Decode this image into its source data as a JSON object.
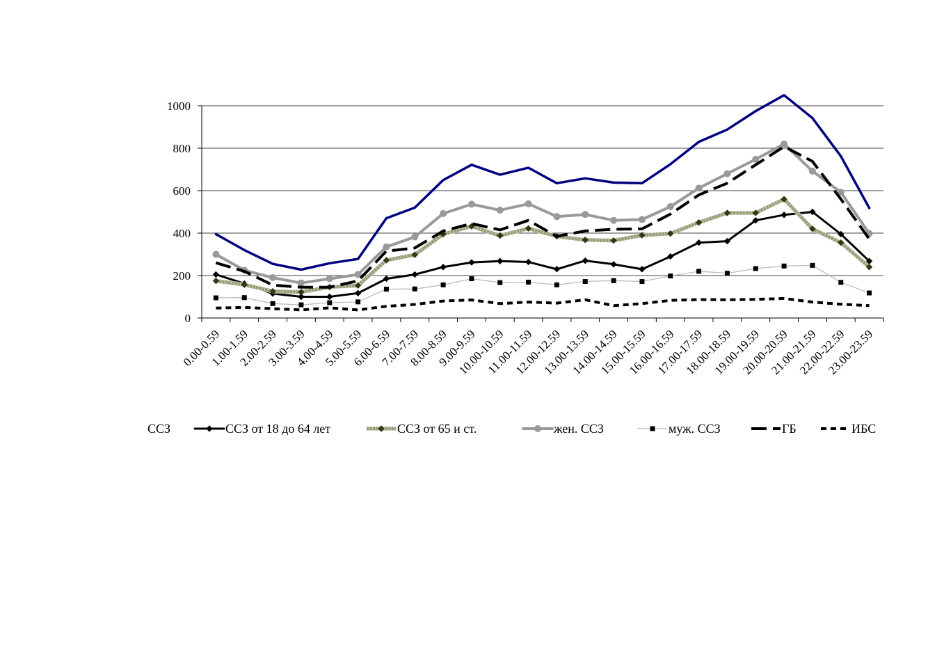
{
  "chart_data": {
    "type": "line",
    "title": "",
    "xlabel": "",
    "ylabel": "",
    "ylim": [
      0,
      1000
    ],
    "yticks": [
      0,
      200,
      400,
      600,
      800,
      1000
    ],
    "grid": true,
    "legend_position": "bottom",
    "categories": [
      "0.00-0.59",
      "1.00-1.59",
      "2.00-2.59",
      "3.00-3.59",
      "4.00-4.59",
      "5.00-5.59",
      "6.00-6.59",
      "7.00-7.59",
      "8.00-8.59",
      "9.00-9.59",
      "10.00-10.59",
      "11.00-11.59",
      "12.00-12.59",
      "13.00-13.59",
      "14.00-14.59",
      "15.00-15.59",
      "16.00-16.59",
      "17.00-17.59",
      "18.00-18.59",
      "19.00-19.59",
      "20.00-20.59",
      "21.00-21.59",
      "22.00-22.59",
      "23.00-23.59"
    ],
    "series": [
      {
        "name": "ССЗ",
        "color": "#000080",
        "style": "solid",
        "width": 3.5,
        "marker": "none",
        "values": [
          395,
          320,
          255,
          228,
          258,
          278,
          470,
          520,
          650,
          722,
          675,
          708,
          635,
          658,
          638,
          635,
          725,
          830,
          888,
          975,
          1050,
          942,
          762,
          518
        ]
      },
      {
        "name": "ССЗ от 18 до 64 лет",
        "color": "#000000",
        "style": "solid",
        "width": 3,
        "marker": "diamond",
        "values": [
          205,
          162,
          115,
          100,
          100,
          117,
          185,
          205,
          240,
          262,
          268,
          264,
          230,
          270,
          253,
          230,
          290,
          355,
          362,
          460,
          486,
          500,
          395,
          268
        ]
      },
      {
        "name": "ССЗ от 65 и ст.",
        "color": "#9c9a72",
        "style": "hatched",
        "width": 4.5,
        "marker": "diamond",
        "values": [
          175,
          157,
          126,
          122,
          146,
          153,
          272,
          298,
          395,
          432,
          388,
          422,
          385,
          368,
          365,
          390,
          398,
          450,
          495,
          495,
          560,
          420,
          355,
          240
        ]
      },
      {
        "name": "жен. ССЗ",
        "color": "#999999",
        "style": "solid",
        "width": 4,
        "marker": "circle",
        "values": [
          300,
          225,
          190,
          165,
          185,
          205,
          335,
          382,
          492,
          536,
          508,
          538,
          478,
          488,
          460,
          464,
          525,
          612,
          680,
          748,
          820,
          692,
          592,
          398
        ]
      },
      {
        "name": "муж. ССЗ",
        "color": "#bbbbbb",
        "style": "solid",
        "width": 1.3,
        "marker": "square",
        "values": [
          95,
          96,
          68,
          62,
          72,
          76,
          136,
          137,
          156,
          185,
          167,
          169,
          156,
          172,
          176,
          172,
          198,
          220,
          211,
          233,
          245,
          248,
          168,
          118
        ]
      },
      {
        "name": "ГБ",
        "color": "#000000",
        "style": "dashed",
        "width": 4,
        "marker": "none",
        "values": [
          260,
          220,
          155,
          145,
          145,
          175,
          315,
          330,
          410,
          445,
          415,
          460,
          385,
          410,
          418,
          420,
          490,
          580,
          635,
          722,
          808,
          738,
          560,
          372
        ]
      },
      {
        "name": "ИБС",
        "color": "#000000",
        "style": "dotted",
        "width": 4,
        "marker": "none",
        "values": [
          47,
          50,
          44,
          38,
          48,
          38,
          55,
          64,
          80,
          85,
          68,
          75,
          70,
          86,
          58,
          68,
          83,
          87,
          86,
          88,
          92,
          75,
          65,
          58
        ]
      }
    ]
  }
}
